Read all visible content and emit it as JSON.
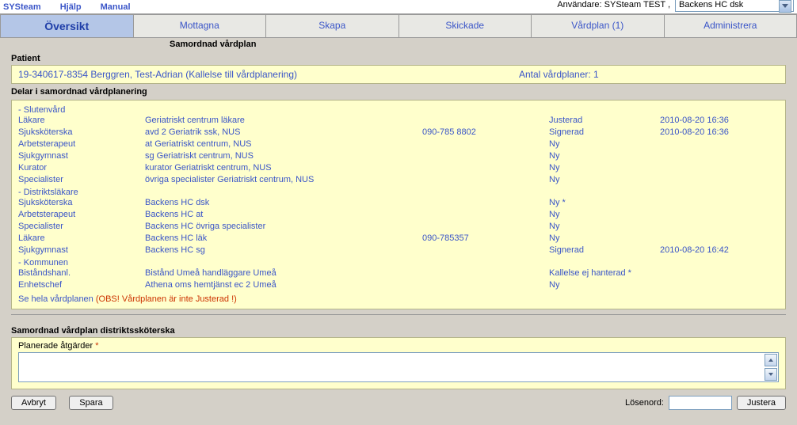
{
  "top": {
    "left_links": [
      "SYSteam",
      "Hjälp",
      "Manual"
    ],
    "user_label": "Användare: SYSteam TEST ,",
    "combo_value": "Backens HC dsk"
  },
  "tabs": [
    {
      "label": "Översikt",
      "active": true
    },
    {
      "label": "Mottagna",
      "active": false
    },
    {
      "label": "Skapa",
      "active": false
    },
    {
      "label": "Skickade",
      "active": false
    },
    {
      "label": "Vårdplan (1)",
      "active": false
    },
    {
      "label": "Administrera",
      "active": false
    }
  ],
  "sub_header": "Samordnad vårdplan",
  "patient": {
    "title": "Patient",
    "line": "19-340617-8354  Berggren, Test-Adrian  (Kallelse till vårdplanering)",
    "count_label": "Antal vårdplaner:  1"
  },
  "parts_title": "Delar i samordnad vårdplanering",
  "groups": [
    {
      "header": "Slutenvård",
      "rows": [
        {
          "role": "Läkare",
          "unit": "Geriatriskt centrum läkare",
          "phone": "",
          "status": "Justerad",
          "ts": "2010-08-20 16:36"
        },
        {
          "role": "Sjuksköterska",
          "unit": "avd 2 Geriatrik ssk, NUS",
          "phone": "090-785 8802",
          "status": "Signerad",
          "ts": "2010-08-20 16:36"
        },
        {
          "role": "Arbetsterapeut",
          "unit": "at Geriatriskt centrum, NUS",
          "phone": "",
          "status": "Ny",
          "ts": ""
        },
        {
          "role": "Sjukgymnast",
          "unit": "sg Geriatriskt centrum, NUS",
          "phone": "",
          "status": "Ny",
          "ts": ""
        },
        {
          "role": "Kurator",
          "unit": "kurator Geriatriskt centrum, NUS",
          "phone": "",
          "status": "Ny",
          "ts": ""
        },
        {
          "role": "Specialister",
          "unit": "övriga specialister Geriatriskt centrum, NUS",
          "phone": "",
          "status": "Ny",
          "ts": ""
        }
      ]
    },
    {
      "header": "Distriktsläkare",
      "rows": [
        {
          "role": "Sjuksköterska",
          "unit": "Backens HC dsk",
          "phone": "",
          "status": "Ny *",
          "ts": ""
        },
        {
          "role": "Arbetsterapeut",
          "unit": "Backens HC at",
          "phone": "",
          "status": "Ny",
          "ts": ""
        },
        {
          "role": "Specialister",
          "unit": "Backens HC övriga specialister",
          "phone": "",
          "status": "Ny",
          "ts": ""
        },
        {
          "role": "Läkare",
          "unit": "Backens HC läk",
          "phone": "090-785357",
          "status": "Ny",
          "ts": ""
        },
        {
          "role": "Sjukgymnast",
          "unit": "Backens HC sg",
          "phone": "",
          "status": "Signerad",
          "ts": "2010-08-20 16:42"
        }
      ]
    },
    {
      "header": "Kommunen",
      "rows": [
        {
          "role": "Biståndshanl.",
          "unit": "Bistånd Umeå handläggare Umeå",
          "phone": "",
          "status": "Kallelse ej hanterad *",
          "ts": ""
        },
        {
          "role": "Enhetschef",
          "unit": "Athena oms hemtjänst ec 2 Umeå",
          "phone": "",
          "status": "Ny",
          "ts": ""
        }
      ]
    }
  ],
  "footer_link": "Se hela vårdplanen",
  "footer_warn": "(OBS! Vårdplanen är inte Justerad !)",
  "form": {
    "title": "Samordnad vårdplan distriktssköterska",
    "field_label": "Planerade åtgärder",
    "required_marker": "*",
    "value": ""
  },
  "buttons": {
    "cancel": "Avbryt",
    "save": "Spara",
    "password_label": "Lösenord:",
    "adjust": "Justera"
  }
}
